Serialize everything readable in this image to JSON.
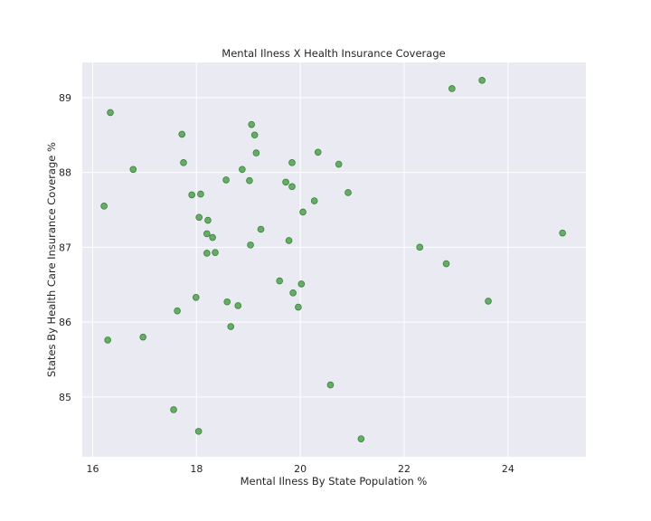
{
  "chart_data": {
    "type": "scatter",
    "title": "Mental Ilness X Health Insurance Coverage",
    "xlabel": "Mental Ilness By State Population %",
    "ylabel": "States By Health Care Insurance Coverage %",
    "xlim": [
      15.8,
      25.5
    ],
    "ylim": [
      84.2,
      89.47
    ],
    "xticks": [
      16,
      18,
      20,
      22,
      24
    ],
    "yticks": [
      85,
      86,
      87,
      88,
      89
    ],
    "grid": true,
    "background": "#eaeaf2",
    "grid_color": "#ffffff",
    "marker_color": "#4ea24e",
    "points": [
      {
        "x": 16.22,
        "y": 87.55
      },
      {
        "x": 16.34,
        "y": 88.8
      },
      {
        "x": 16.29,
        "y": 85.76
      },
      {
        "x": 16.78,
        "y": 88.04
      },
      {
        "x": 16.97,
        "y": 85.8
      },
      {
        "x": 17.56,
        "y": 84.83
      },
      {
        "x": 17.63,
        "y": 86.15
      },
      {
        "x": 17.72,
        "y": 88.51
      },
      {
        "x": 17.75,
        "y": 88.13
      },
      {
        "x": 17.91,
        "y": 87.7
      },
      {
        "x": 17.99,
        "y": 86.33
      },
      {
        "x": 18.05,
        "y": 87.4
      },
      {
        "x": 18.08,
        "y": 87.71
      },
      {
        "x": 18.04,
        "y": 84.54
      },
      {
        "x": 18.2,
        "y": 87.18
      },
      {
        "x": 18.22,
        "y": 87.36
      },
      {
        "x": 18.2,
        "y": 86.92
      },
      {
        "x": 18.31,
        "y": 87.13
      },
      {
        "x": 18.36,
        "y": 86.93
      },
      {
        "x": 18.57,
        "y": 87.9
      },
      {
        "x": 18.59,
        "y": 86.27
      },
      {
        "x": 18.66,
        "y": 85.94
      },
      {
        "x": 18.8,
        "y": 86.22
      },
      {
        "x": 18.88,
        "y": 88.04
      },
      {
        "x": 19.02,
        "y": 87.89
      },
      {
        "x": 19.04,
        "y": 87.03
      },
      {
        "x": 19.06,
        "y": 88.64
      },
      {
        "x": 19.12,
        "y": 88.5
      },
      {
        "x": 19.15,
        "y": 88.26
      },
      {
        "x": 19.24,
        "y": 87.24
      },
      {
        "x": 19.6,
        "y": 86.55
      },
      {
        "x": 19.72,
        "y": 87.87
      },
      {
        "x": 19.78,
        "y": 87.09
      },
      {
        "x": 19.84,
        "y": 87.81
      },
      {
        "x": 19.84,
        "y": 88.13
      },
      {
        "x": 19.86,
        "y": 86.39
      },
      {
        "x": 19.96,
        "y": 86.2
      },
      {
        "x": 20.02,
        "y": 86.51
      },
      {
        "x": 20.05,
        "y": 87.47
      },
      {
        "x": 20.27,
        "y": 87.62
      },
      {
        "x": 20.34,
        "y": 88.27
      },
      {
        "x": 20.58,
        "y": 85.16
      },
      {
        "x": 20.74,
        "y": 88.11
      },
      {
        "x": 20.92,
        "y": 87.73
      },
      {
        "x": 21.17,
        "y": 84.44
      },
      {
        "x": 22.3,
        "y": 87.0
      },
      {
        "x": 22.81,
        "y": 86.78
      },
      {
        "x": 22.92,
        "y": 89.12
      },
      {
        "x": 23.5,
        "y": 89.23
      },
      {
        "x": 23.62,
        "y": 86.28
      },
      {
        "x": 25.05,
        "y": 87.19
      }
    ]
  }
}
